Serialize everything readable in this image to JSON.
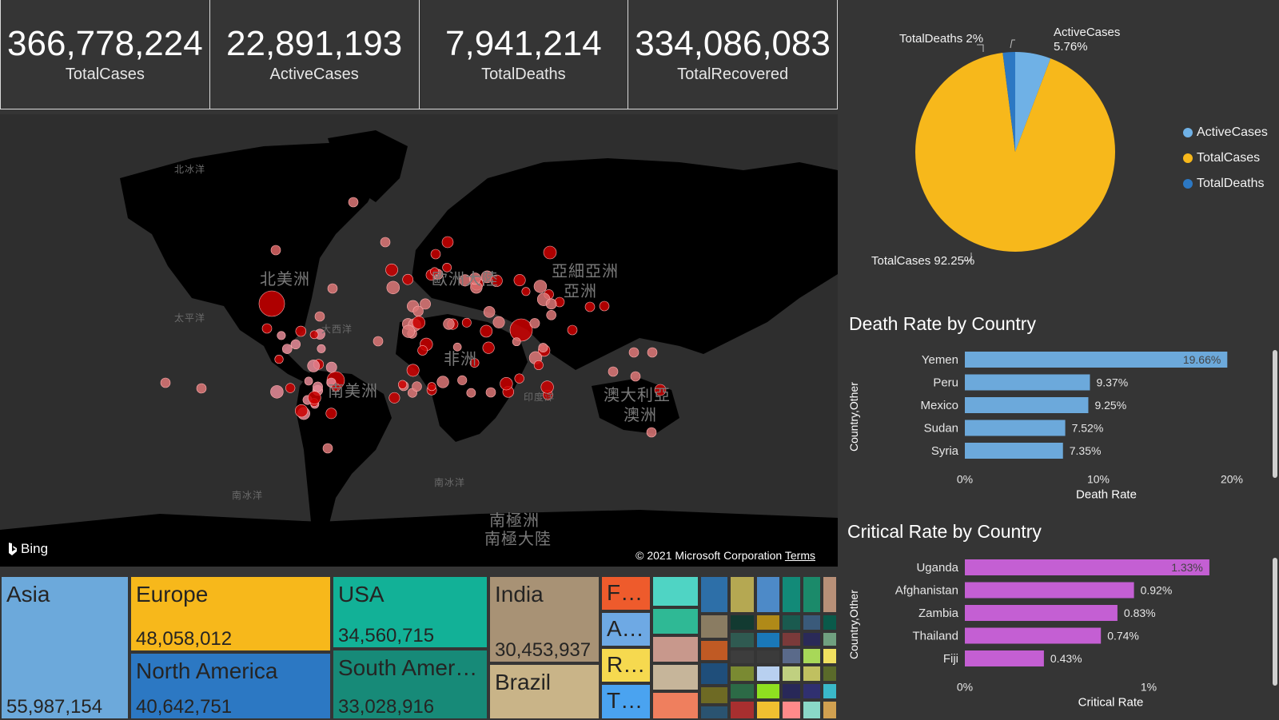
{
  "kpis": [
    {
      "value": "366,778,224",
      "label": "TotalCases"
    },
    {
      "value": "22,891,193",
      "label": "ActiveCases"
    },
    {
      "value": "7,941,214",
      "label": "TotalDeaths"
    },
    {
      "value": "334,086,083",
      "label": "TotalRecovered"
    }
  ],
  "map": {
    "bing_label": "Bing",
    "copyright": "© 2021 Microsoft Corporation",
    "terms_link": "Terms",
    "labels": {
      "north_america": "北美洲",
      "south_america": "南美洲",
      "europe": "歐洲大陸",
      "asia": "亞細亞洲",
      "asia2": "亞洲",
      "africa": "非洲",
      "oceania": "澳大利亞",
      "oceania2": "澳洲",
      "antarctica": "南極洲",
      "antarctica2": "南極大陸",
      "arctic_ocean": "北冰洋",
      "pacific": "太平洋",
      "atlantic": "大西洋",
      "indian": "印度洋",
      "southern1": "南冰洋",
      "southern2": "南冰洋"
    }
  },
  "treemap": [
    {
      "name": "Asia",
      "value": "55,987,154",
      "color": "#6ca9db"
    },
    {
      "name": "Europe",
      "value": "48,058,012",
      "color": "#f7b81b"
    },
    {
      "name": "North America",
      "value": "40,642,751",
      "color": "#2c78c3"
    },
    {
      "name": "USA",
      "value": "34,560,715",
      "color": "#12b197"
    },
    {
      "name": "South Amer…",
      "value": "33,028,916",
      "color": "#178a78"
    },
    {
      "name": "India",
      "value": "30,453,937",
      "color": "#a89275"
    },
    {
      "name": "Brazil",
      "value": "",
      "color": "#c9b488"
    },
    {
      "name": "F…",
      "value": "",
      "color": "#ee5b2c"
    },
    {
      "name": "A…",
      "value": "",
      "color": "#6ea9e4"
    },
    {
      "name": "R…",
      "value": "",
      "color": "#f6d94f"
    },
    {
      "name": "T…",
      "value": "",
      "color": "#4aa3f0"
    }
  ],
  "pie": {
    "chart_data": {
      "type": "pie",
      "categories": [
        "ActiveCases",
        "TotalCases",
        "TotalDeaths"
      ],
      "values": [
        5.76,
        92.25,
        2
      ],
      "colors": [
        "#6fb1e6",
        "#f7b81b",
        "#2c78c3"
      ],
      "labels": [
        "ActiveCases 5.76%",
        "TotalCases 92.25%",
        "TotalDeaths 2%"
      ],
      "legend_position": "right"
    },
    "label_active_1": "ActiveCases",
    "label_active_2": "5.76%",
    "label_total": "TotalCases 92.25%",
    "label_deaths": "TotalDeaths 2%",
    "legend": [
      "ActiveCases",
      "TotalCases",
      "TotalDeaths"
    ]
  },
  "death_rate": {
    "title": "Death Rate by Country",
    "y_title": "Country,Other",
    "x_title": "Death Rate",
    "chart_data": {
      "type": "bar",
      "orientation": "horizontal",
      "categories": [
        "Yemen",
        "Peru",
        "Mexico",
        "Sudan",
        "Syria"
      ],
      "values": [
        19.66,
        9.37,
        9.25,
        7.52,
        7.35
      ],
      "data_labels": [
        "19.66%",
        "9.37%",
        "9.25%",
        "7.52%",
        "7.35%"
      ],
      "xlim": [
        0,
        20
      ],
      "ticks": [
        "0%",
        "10%",
        "20%"
      ],
      "tick_values": [
        0,
        10,
        20
      ],
      "color": "#6ca9db"
    }
  },
  "critical_rate": {
    "title": "Critical Rate by Country",
    "y_title": "Country,Other",
    "x_title": "Critical Rate",
    "chart_data": {
      "type": "bar",
      "orientation": "horizontal",
      "categories": [
        "Uganda",
        "Afghanistan",
        "Zambia",
        "Thailand",
        "Fiji"
      ],
      "values": [
        1.33,
        0.92,
        0.83,
        0.74,
        0.43
      ],
      "data_labels": [
        "1.33%",
        "0.92%",
        "0.83%",
        "0.74%",
        "0.43%"
      ],
      "xlim": [
        0,
        1.5
      ],
      "ticks": [
        "0%",
        "1%"
      ],
      "tick_values": [
        0,
        1
      ],
      "color": "#c45fd3"
    }
  }
}
